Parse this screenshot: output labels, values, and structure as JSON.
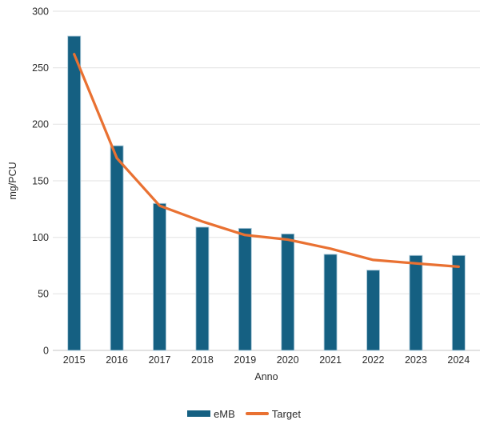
{
  "chart_data": {
    "type": "combo",
    "title": "",
    "categories": [
      "2015",
      "2016",
      "2017",
      "2018",
      "2019",
      "2020",
      "2021",
      "2022",
      "2023",
      "2024"
    ],
    "series": [
      {
        "name": "eMB",
        "type": "bar",
        "color": "#156082",
        "values": [
          278,
          181,
          130,
          109,
          108,
          103,
          85,
          71,
          84,
          84
        ]
      },
      {
        "name": "Target",
        "type": "line",
        "color": "#E97132",
        "values": [
          262,
          170,
          128,
          114,
          102,
          98,
          90,
          80,
          77,
          74
        ]
      }
    ],
    "xlabel": "Anno",
    "ylabel": "mg/PCU",
    "ylim": [
      0,
      300
    ],
    "ytick_step": 50,
    "y_tick_labels": [
      "0",
      "50",
      "100",
      "150",
      "200",
      "250",
      "300"
    ],
    "grid": true,
    "legend_position": "bottom"
  },
  "style": {
    "bar_color": "#156082",
    "bar_border_color": "#AECBDA",
    "line_color": "#E97132",
    "gridline_color": "#E2E2E2",
    "axis_line_color": "#C6C6C6",
    "text_color": "#2B2B2B",
    "background": "#FFFFFF"
  }
}
